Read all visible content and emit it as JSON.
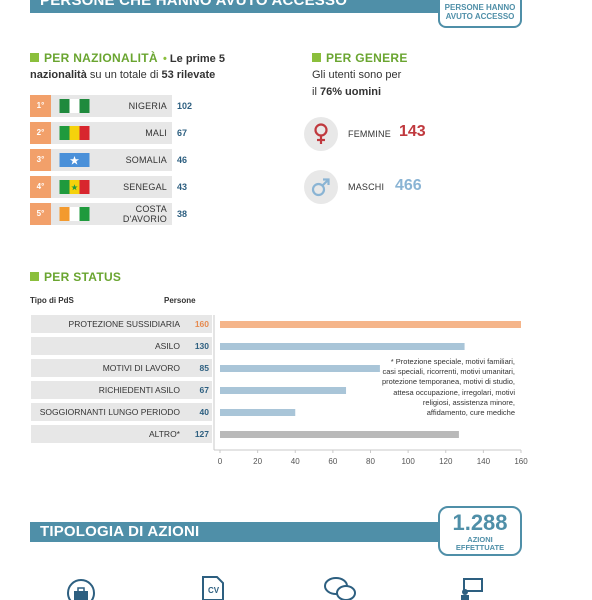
{
  "top_header": {
    "title": "PERSONE CHE HANNO AVUTO ACCESSO",
    "badge_line1": "PERSONE HANNO",
    "badge_line2": "AVUTO ACCESSO"
  },
  "nazionalita": {
    "title": "PER NAZIONALITÀ",
    "desc_a": "Le prime 5",
    "desc_b": "nazionalità",
    "desc_c": "su un totale di",
    "desc_d": "53 rilevate",
    "items": [
      {
        "rank": "1°",
        "name": "NIGERIA",
        "value": "102",
        "flag": "nigeria"
      },
      {
        "rank": "2°",
        "name": "MALI",
        "value": "67",
        "flag": "mali"
      },
      {
        "rank": "3°",
        "name": "SOMALIA",
        "value": "46",
        "flag": "somalia"
      },
      {
        "rank": "4°",
        "name": "SENEGAL",
        "value": "43",
        "flag": "senegal"
      },
      {
        "rank": "5°",
        "name_line1": "COSTA",
        "name_line2": "D'AVORIO",
        "value": "38",
        "flag": "costa-davorio"
      }
    ]
  },
  "genere": {
    "title": "PER GENERE",
    "desc_line1": "Gli utenti sono per",
    "desc_line2_a": "il",
    "desc_line2_b": "76% uomini",
    "femmine_label": "FEMMINE",
    "femmine_value": "143",
    "maschi_label": "MASCHI",
    "maschi_value": "466",
    "colors": {
      "femmine": "#c0393e",
      "maschi": "#8ab4d4"
    }
  },
  "status": {
    "title": "PER STATUS",
    "col_tipo": "Tipo di PdS",
    "col_persone": "Persone",
    "note": "* Protezione speciale, motivi familiari, casi speciali, ricorrenti, motivi umanitari, protezione temporanea, motivi di studio, attesa occupazione, irregolari, motivi religiosi, assistenza minore, affidamento, cure mediche"
  },
  "chart_data": {
    "type": "bar",
    "orientation": "horizontal",
    "categories": [
      "PROTEZIONE SUSSIDIARIA",
      "ASILO",
      "MOTIVI DI LAVORO",
      "RICHIEDENTI ASILO",
      "SOGGIORNANTI LUNGO PERIODO",
      "ALTRO*"
    ],
    "values": [
      160,
      130,
      85,
      67,
      40,
      127
    ],
    "value_labels": [
      "160",
      "130",
      "85",
      "67",
      "40",
      "127"
    ],
    "bar_colors": [
      "#f5b58a",
      "#a9c5d8",
      "#a9c5d8",
      "#a9c5d8",
      "#a9c5d8",
      "#b9b9b9"
    ],
    "xlim": [
      0,
      160
    ],
    "xticks": [
      "0",
      "20",
      "40",
      "60",
      "80",
      "100",
      "120",
      "140",
      "160"
    ],
    "grid": false
  },
  "azioni": {
    "title": "TIPOLOGIA DI AZIONI",
    "badge_value": "1.288",
    "badge_line1": "AZIONI",
    "badge_line2": "EFFETTUATE"
  },
  "bottom_icons": [
    "briefcase-icon",
    "cv-document-icon",
    "speech-bubbles-icon",
    "teacher-board-icon"
  ]
}
